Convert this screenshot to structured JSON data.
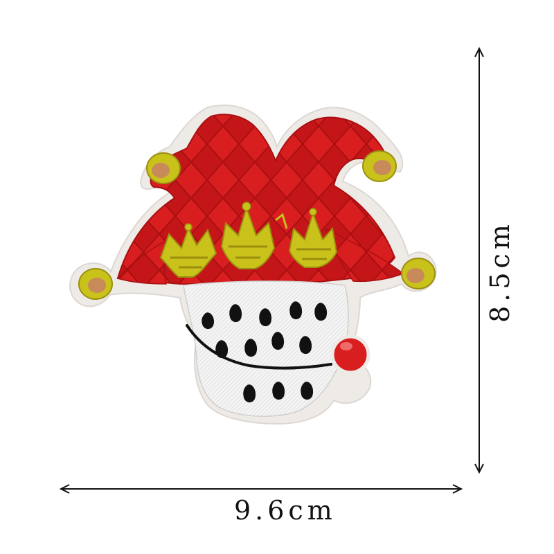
{
  "dimensions": {
    "width_label": "9.6cm",
    "height_label": "8.5cm"
  },
  "patch": {
    "subject": "jester-hat-embroidered-patch",
    "colors": {
      "red": "#d81e1e",
      "red_dark": "#a80f12",
      "white": "#f4f4f4",
      "gold": "#c9c21a",
      "gold_dark": "#9a8e0e",
      "tan": "#c98a5a",
      "black": "#111111",
      "border": "#e9e6e3"
    }
  }
}
